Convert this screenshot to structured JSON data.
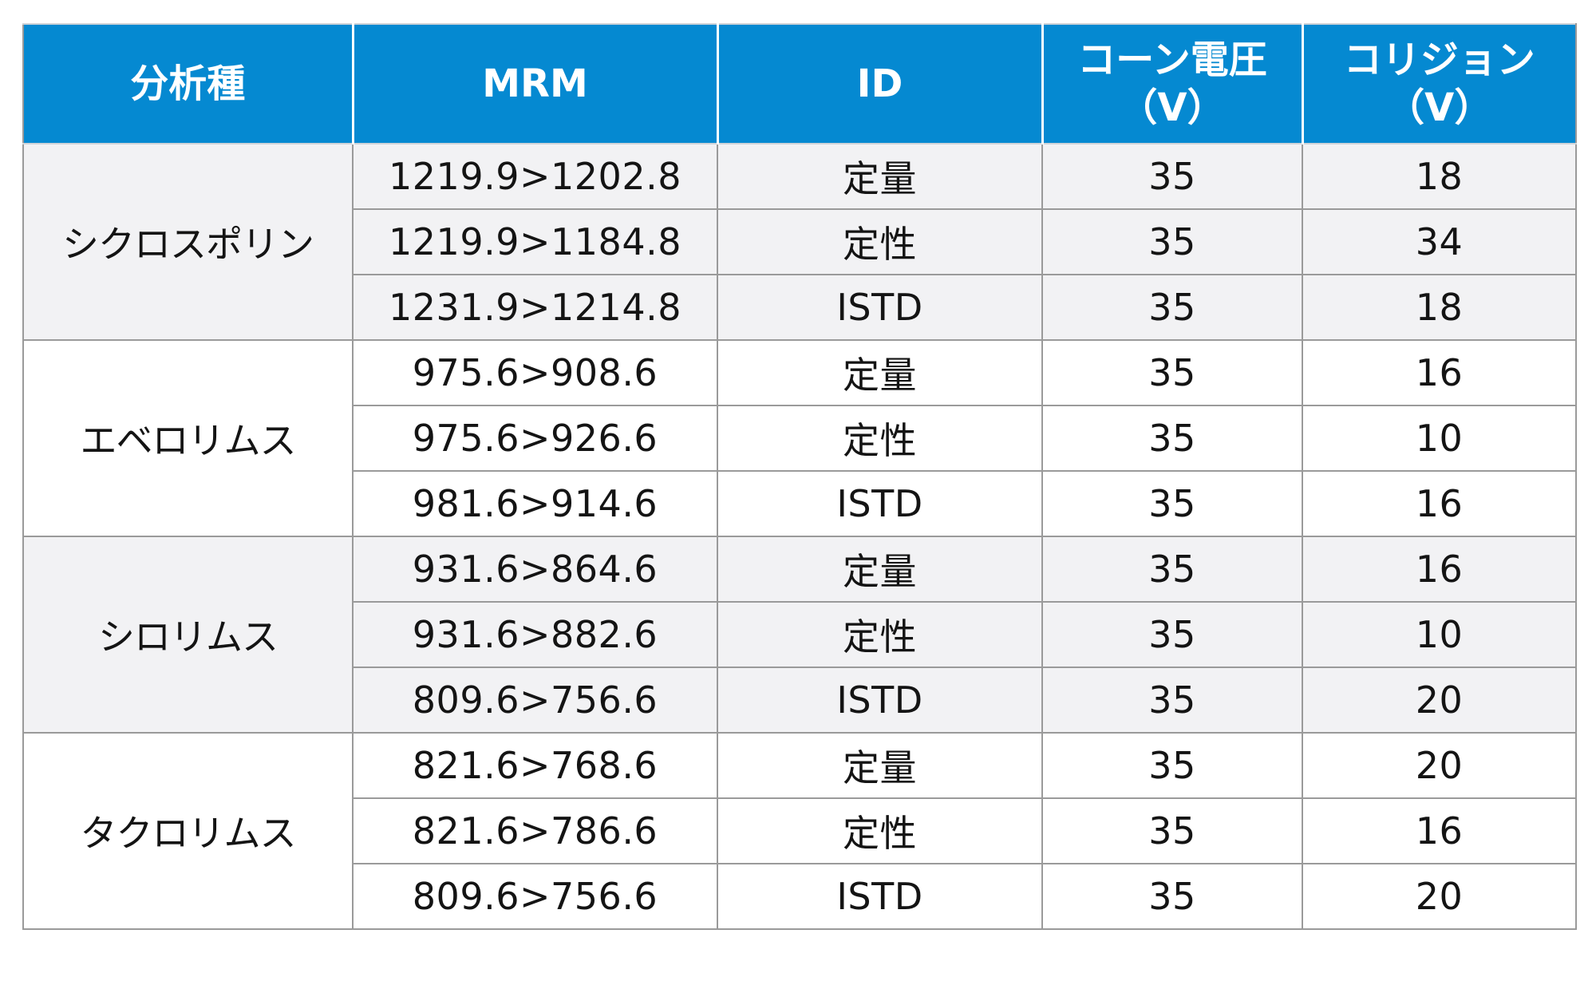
{
  "table": {
    "headers": [
      {
        "lines": [
          "分析種"
        ]
      },
      {
        "lines": [
          "MRM"
        ]
      },
      {
        "lines": [
          "ID"
        ]
      },
      {
        "lines": [
          "コーン電圧",
          "（V）"
        ]
      },
      {
        "lines": [
          "コリジョン",
          "（V）"
        ]
      }
    ],
    "groups": [
      {
        "analyte": "シクロスポリン",
        "rows": [
          {
            "mrm": "1219.9>1202.8",
            "id": "定量",
            "cone": "35",
            "collision": "18"
          },
          {
            "mrm": "1219.9>1184.8",
            "id": "定性",
            "cone": "35",
            "collision": "34"
          },
          {
            "mrm": "1231.9>1214.8",
            "id": "ISTD",
            "cone": "35",
            "collision": "18"
          }
        ]
      },
      {
        "analyte": "エベロリムス",
        "rows": [
          {
            "mrm": "975.6>908.6",
            "id": "定量",
            "cone": "35",
            "collision": "16"
          },
          {
            "mrm": "975.6>926.6",
            "id": "定性",
            "cone": "35",
            "collision": "10"
          },
          {
            "mrm": "981.6>914.6",
            "id": "ISTD",
            "cone": "35",
            "collision": "16"
          }
        ]
      },
      {
        "analyte": "シロリムス",
        "rows": [
          {
            "mrm": "931.6>864.6",
            "id": "定量",
            "cone": "35",
            "collision": "16"
          },
          {
            "mrm": "931.6>882.6",
            "id": "定性",
            "cone": "35",
            "collision": "10"
          },
          {
            "mrm": "809.6>756.6",
            "id": "ISTD",
            "cone": "35",
            "collision": "20"
          }
        ]
      },
      {
        "analyte": "タクロリムス",
        "rows": [
          {
            "mrm": "821.6>768.6",
            "id": "定量",
            "cone": "35",
            "collision": "20"
          },
          {
            "mrm": "821.6>786.6",
            "id": "定性",
            "cone": "35",
            "collision": "16"
          },
          {
            "mrm": "809.6>756.6",
            "id": "ISTD",
            "cone": "35",
            "collision": "20"
          }
        ]
      }
    ]
  },
  "colors": {
    "header_bg": "#0589d1",
    "header_text": "#ffffff",
    "band_bg": "#f2f2f4",
    "grid": "#9a9a9a"
  }
}
